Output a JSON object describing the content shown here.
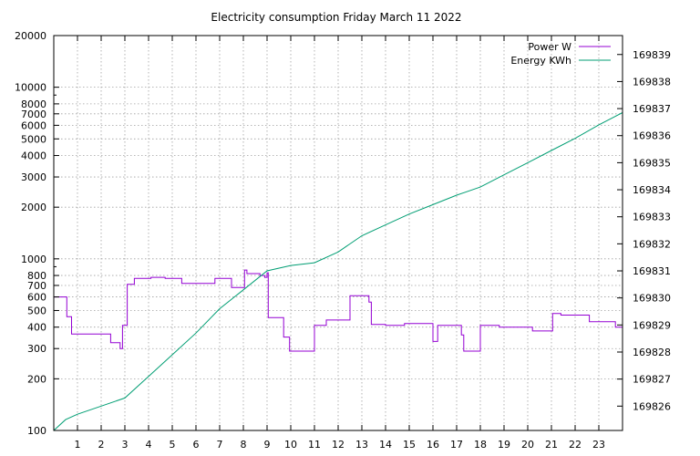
{
  "chart_data": {
    "type": "line",
    "title": "Electricity consumption Friday March 11 2022",
    "x_axis": {
      "range": [
        0,
        24
      ],
      "ticks": [
        1,
        2,
        3,
        4,
        5,
        6,
        7,
        8,
        9,
        10,
        11,
        12,
        13,
        14,
        15,
        16,
        17,
        18,
        19,
        20,
        21,
        22,
        23
      ],
      "tick_labels": [
        "1",
        "2",
        "3",
        "4",
        "5",
        "6",
        "7",
        "8",
        "9",
        "10",
        "11",
        "12",
        "13",
        "14",
        "15",
        "16",
        "17",
        "18",
        "19",
        "20",
        "21",
        "22",
        "23"
      ]
    },
    "y_axis_left": {
      "scale": "log",
      "range": [
        100,
        20000
      ],
      "ticks": [
        100,
        200,
        300,
        400,
        500,
        600,
        700,
        800,
        1000,
        2000,
        3000,
        4000,
        5000,
        6000,
        7000,
        8000,
        10000,
        20000
      ],
      "tick_labels": [
        "100",
        "200",
        "300",
        "400",
        "500",
        "600",
        "700",
        "800",
        "1000",
        "2000",
        "3000",
        "4000",
        "5000",
        "6000",
        "7000",
        "8000",
        "10000",
        "20000"
      ]
    },
    "y_axis_right": {
      "scale": "linear",
      "range": [
        169825.1,
        169839.7
      ],
      "ticks": [
        169826,
        169827,
        169828,
        169829,
        169830,
        169831,
        169832,
        169833,
        169834,
        169835,
        169836,
        169837,
        169838,
        169839
      ],
      "tick_labels": [
        "169826",
        "169827",
        "169828",
        "169829",
        "169830",
        "169831",
        "169832",
        "169833",
        "169834",
        "169835",
        "169836",
        "169837",
        "169838",
        "169839"
      ]
    },
    "grid": true,
    "legend_position": "top-right",
    "series": [
      {
        "name": "Power W",
        "color": "#9400d3",
        "axis": "left",
        "step": true,
        "points": [
          [
            0,
            600
          ],
          [
            0.55,
            460
          ],
          [
            0.75,
            365
          ],
          [
            1.5,
            365
          ],
          [
            2.4,
            325
          ],
          [
            2.8,
            300
          ],
          [
            2.9,
            410
          ],
          [
            3.1,
            710
          ],
          [
            3.4,
            770
          ],
          [
            4.1,
            780
          ],
          [
            4.7,
            770
          ],
          [
            5.4,
            720
          ],
          [
            6.2,
            720
          ],
          [
            6.8,
            770
          ],
          [
            7.5,
            680
          ],
          [
            8.0,
            680
          ],
          [
            8.05,
            860
          ],
          [
            8.15,
            820
          ],
          [
            8.7,
            800
          ],
          [
            8.9,
            780
          ],
          [
            9.0,
            830
          ],
          [
            9.05,
            455
          ],
          [
            9.7,
            350
          ],
          [
            9.95,
            290
          ],
          [
            10.7,
            290
          ],
          [
            11.0,
            410
          ],
          [
            11.5,
            440
          ],
          [
            12.4,
            440
          ],
          [
            12.5,
            610
          ],
          [
            13.2,
            610
          ],
          [
            13.3,
            560
          ],
          [
            13.4,
            415
          ],
          [
            14.0,
            410
          ],
          [
            14.8,
            420
          ],
          [
            15.5,
            420
          ],
          [
            16.0,
            330
          ],
          [
            16.2,
            410
          ],
          [
            17.2,
            360
          ],
          [
            17.3,
            290
          ],
          [
            17.9,
            290
          ],
          [
            18.0,
            410
          ],
          [
            18.8,
            400
          ],
          [
            19.0,
            400
          ],
          [
            19.5,
            400
          ],
          [
            20.2,
            380
          ],
          [
            21.0,
            380
          ],
          [
            21.05,
            480
          ],
          [
            21.4,
            470
          ],
          [
            22.4,
            470
          ],
          [
            22.6,
            430
          ],
          [
            23.5,
            430
          ],
          [
            23.7,
            400
          ],
          [
            24.0,
            410
          ]
        ]
      },
      {
        "name": "Energy KWh",
        "color": "#009e73",
        "axis": "right",
        "step": false,
        "points": [
          [
            0,
            169825.1
          ],
          [
            0.5,
            169825.5
          ],
          [
            1.0,
            169825.7
          ],
          [
            2.0,
            169826.0
          ],
          [
            3.0,
            169826.3
          ],
          [
            4.0,
            169827.1
          ],
          [
            5.0,
            169827.9
          ],
          [
            6.0,
            169828.7
          ],
          [
            7.0,
            169829.6
          ],
          [
            8.0,
            169830.3
          ],
          [
            9.0,
            169831.0
          ],
          [
            10.0,
            169831.2
          ],
          [
            11.0,
            169831.3
          ],
          [
            12.0,
            169831.7
          ],
          [
            13.0,
            169832.3
          ],
          [
            14.0,
            169832.7
          ],
          [
            15.0,
            169833.1
          ],
          [
            16.0,
            169833.45
          ],
          [
            17.0,
            169833.8
          ],
          [
            18.0,
            169834.1
          ],
          [
            19.0,
            169834.55
          ],
          [
            20.0,
            169835.0
          ],
          [
            21.0,
            169835.45
          ],
          [
            22.0,
            169835.9
          ],
          [
            23.0,
            169836.4
          ],
          [
            24.0,
            169836.85
          ]
        ]
      }
    ]
  }
}
